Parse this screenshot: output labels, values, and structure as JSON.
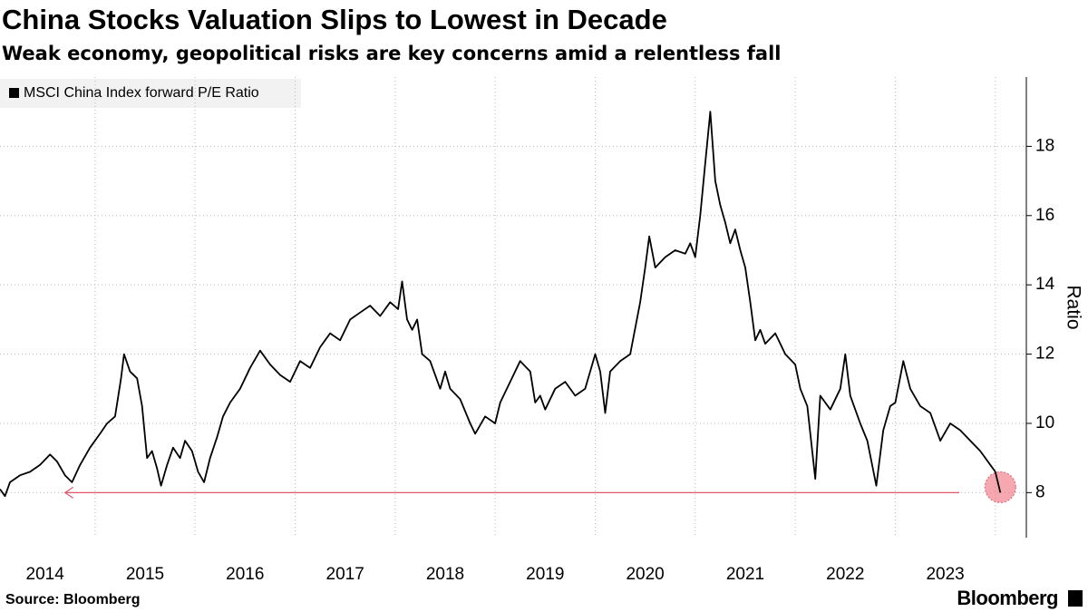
{
  "chart_data": {
    "type": "line",
    "title": "China Stocks Valuation Slips to Lowest in Decade",
    "subtitle": "Weak economy, geopolitical risks are key concerns amid a relentless fall",
    "ylabel": "Ratio",
    "source": "Source: Bloomberg",
    "brand": "Bloomberg",
    "x": [
      2014.05,
      2014.1,
      2014.15,
      2014.25,
      2014.35,
      2014.45,
      2014.55,
      2014.62,
      2014.7,
      2014.77,
      2014.85,
      2014.95,
      2015.05,
      2015.12,
      2015.2,
      2015.26,
      2015.29,
      2015.35,
      2015.42,
      2015.47,
      2015.52,
      2015.57,
      2015.62,
      2015.66,
      2015.72,
      2015.78,
      2015.85,
      2015.9,
      2015.97,
      2016.03,
      2016.09,
      2016.15,
      2016.22,
      2016.28,
      2016.35,
      2016.45,
      2016.55,
      2016.65,
      2016.75,
      2016.85,
      2016.95,
      2017.05,
      2017.15,
      2017.25,
      2017.35,
      2017.45,
      2017.55,
      2017.65,
      2017.75,
      2017.85,
      2017.95,
      2018.03,
      2018.07,
      2018.12,
      2018.17,
      2018.22,
      2018.27,
      2018.35,
      2018.45,
      2018.5,
      2018.55,
      2018.65,
      2018.75,
      2018.8,
      2018.9,
      2019.0,
      2019.05,
      2019.15,
      2019.25,
      2019.35,
      2019.4,
      2019.45,
      2019.5,
      2019.6,
      2019.7,
      2019.8,
      2019.9,
      2020.0,
      2020.05,
      2020.1,
      2020.15,
      2020.25,
      2020.35,
      2020.45,
      2020.5,
      2020.54,
      2020.6,
      2020.7,
      2020.8,
      2020.9,
      2020.95,
      2021.0,
      2021.05,
      2021.1,
      2021.15,
      2021.2,
      2021.25,
      2021.3,
      2021.35,
      2021.4,
      2021.45,
      2021.5,
      2021.55,
      2021.6,
      2021.65,
      2021.7,
      2021.8,
      2021.9,
      2022.0,
      2022.05,
      2022.12,
      2022.2,
      2022.25,
      2022.35,
      2022.45,
      2022.5,
      2022.55,
      2022.65,
      2022.72,
      2022.81,
      2022.88,
      2022.95,
      2023.0,
      2023.08,
      2023.15,
      2023.25,
      2023.35,
      2023.45,
      2023.55,
      2023.65,
      2023.75,
      2023.85,
      2023.95,
      2024.0,
      2024.05
    ],
    "series": [
      {
        "name": "MSCI China Index forward P/E Ratio",
        "color": "#000000",
        "values": [
          8.1,
          7.9,
          8.3,
          8.5,
          8.6,
          8.8,
          9.1,
          8.9,
          8.5,
          8.3,
          8.8,
          9.3,
          9.7,
          10.0,
          10.2,
          11.3,
          12.0,
          11.5,
          11.3,
          10.5,
          9.0,
          9.2,
          8.7,
          8.2,
          8.8,
          9.3,
          9.0,
          9.5,
          9.2,
          8.6,
          8.3,
          9.0,
          9.6,
          10.2,
          10.6,
          11.0,
          11.6,
          12.1,
          11.7,
          11.4,
          11.2,
          11.8,
          11.6,
          12.2,
          12.6,
          12.4,
          13.0,
          13.2,
          13.4,
          13.1,
          13.5,
          13.3,
          14.1,
          13.0,
          12.7,
          13.0,
          12.0,
          11.8,
          11.0,
          11.5,
          11.0,
          10.7,
          10.0,
          9.7,
          10.2,
          10.0,
          10.6,
          11.2,
          11.8,
          11.5,
          10.6,
          10.8,
          10.4,
          11.0,
          11.2,
          10.8,
          11.0,
          12.0,
          11.5,
          10.3,
          11.5,
          11.8,
          12.0,
          13.5,
          14.5,
          15.4,
          14.5,
          14.8,
          15.0,
          14.9,
          15.2,
          14.8,
          16.0,
          17.5,
          19.0,
          17.0,
          16.3,
          15.8,
          15.2,
          15.6,
          15.0,
          14.5,
          13.5,
          12.4,
          12.7,
          12.3,
          12.6,
          12.0,
          11.7,
          11.0,
          10.5,
          8.4,
          10.8,
          10.4,
          11.0,
          12.0,
          10.8,
          10.0,
          9.5,
          8.2,
          9.8,
          10.5,
          10.6,
          11.8,
          11.0,
          10.5,
          10.3,
          9.5,
          10.0,
          9.8,
          9.5,
          9.2,
          8.8,
          8.6,
          8.0
        ]
      }
    ],
    "reference_line": {
      "value": 8.0,
      "x": [
        2014.7,
        2023.64
      ],
      "color": "#e0566a"
    },
    "xlim": [
      2014.05,
      2024.31
    ],
    "ylim": [
      6.7,
      20.0
    ],
    "yticks": [
      8,
      10,
      12,
      14,
      16,
      18
    ],
    "xgrid": [
      2015,
      2016,
      2017,
      2018,
      2019,
      2020,
      2021,
      2022,
      2023,
      2024
    ],
    "xticks": [
      {
        "value": 2014.5,
        "label": "2014"
      },
      {
        "value": 2015.5,
        "label": "2015"
      },
      {
        "value": 2016.5,
        "label": "2016"
      },
      {
        "value": 2017.5,
        "label": "2017"
      },
      {
        "value": 2018.5,
        "label": "2018"
      },
      {
        "value": 2019.5,
        "label": "2019"
      },
      {
        "value": 2020.5,
        "label": "2020"
      },
      {
        "value": 2021.5,
        "label": "2021"
      },
      {
        "value": 2022.5,
        "label": "2022"
      },
      {
        "value": 2023.5,
        "label": "2023"
      }
    ],
    "grid": true
  }
}
